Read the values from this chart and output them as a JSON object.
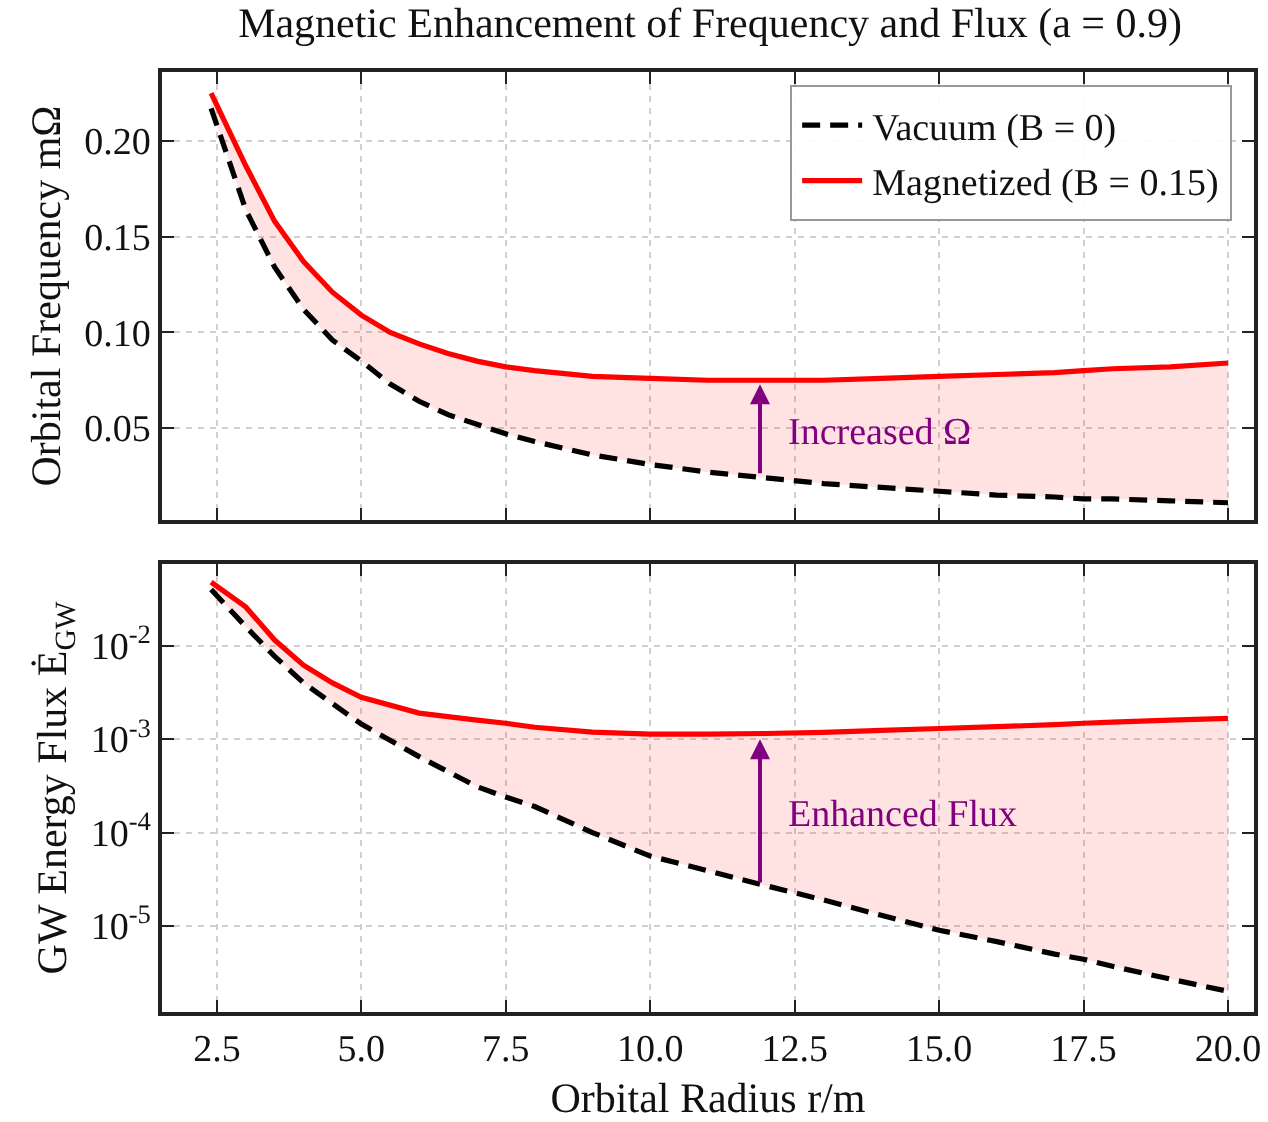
{
  "chart_data": [
    {
      "type": "line",
      "title": "Magnetic Enhancement of Frequency and Flux (a = 0.9)",
      "ylabel": "Orbital Frequency mΩ",
      "x": [
        2.4,
        3,
        3.5,
        4,
        4.5,
        5,
        5.5,
        6,
        6.5,
        7,
        7.5,
        8,
        9,
        10,
        11,
        12,
        13,
        14,
        15,
        16,
        17,
        17.5,
        18,
        19,
        20
      ],
      "series": [
        {
          "name": "Vacuum (B = 0)",
          "color": "#000000",
          "line_style": "dashed",
          "values": [
            0.217,
            0.164,
            0.134,
            0.112,
            0.096,
            0.085,
            0.073,
            0.064,
            0.057,
            0.052,
            0.047,
            0.043,
            0.036,
            0.031,
            0.027,
            0.024,
            0.021,
            0.019,
            0.017,
            0.015,
            0.014,
            0.013,
            0.013,
            0.012,
            0.011
          ]
        },
        {
          "name": "Magnetized (B = 0.15)",
          "color": "#ff0000",
          "line_style": "solid",
          "values": [
            0.225,
            0.187,
            0.158,
            0.137,
            0.121,
            0.109,
            0.1,
            0.094,
            0.089,
            0.085,
            0.082,
            0.08,
            0.077,
            0.076,
            0.075,
            0.075,
            0.075,
            0.076,
            0.077,
            0.078,
            0.079,
            0.08,
            0.081,
            0.082,
            0.084
          ],
          "lower": [
            0.217,
            0.164,
            0.134,
            0.112,
            0.096,
            0.085,
            0.073,
            0.064,
            0.057,
            0.052,
            0.047,
            0.043,
            0.036,
            0.031,
            0.027,
            0.024,
            0.021,
            0.019,
            0.017,
            0.015,
            0.014,
            0.013,
            0.013,
            0.012,
            0.011
          ],
          "upper": [
            0.225,
            0.187,
            0.158,
            0.137,
            0.121,
            0.109,
            0.1,
            0.094,
            0.089,
            0.085,
            0.082,
            0.08,
            0.077,
            0.076,
            0.075,
            0.075,
            0.075,
            0.076,
            0.077,
            0.078,
            0.079,
            0.08,
            0.081,
            0.082,
            0.084
          ]
        }
      ],
      "xlim": [
        1.55,
        20.45
      ],
      "xticks": [
        2.5,
        5,
        7.5,
        10,
        12.5,
        15,
        17.5,
        20
      ],
      "ylim": [
        0.002,
        0.236
      ],
      "yticks": [
        0.05,
        {
          "value": 0.1,
          "label": "0.10"
        },
        0.15,
        {
          "value": 0.2,
          "label": "0.20"
        }
      ],
      "tick_labels": "y",
      "grid": true,
      "legend": "top right",
      "annotations": [
        {
          "text": "Increased Ω",
          "x": 11.9,
          "y": 0.075
        }
      ]
    },
    {
      "type": "line",
      "xlabel": "Orbital Radius r/m",
      "ylabel": "GW Energy Flux Ė$_{GW}$",
      "x": [
        2.4,
        3,
        3.5,
        4,
        4.5,
        5,
        6,
        7,
        7.5,
        8,
        9,
        10,
        11,
        12,
        13,
        14,
        15,
        16,
        17,
        17.5,
        18,
        19,
        20
      ],
      "series": [
        {
          "color": "#000000",
          "line_style": "dashed",
          "values": [
            0.04,
            0.016,
            0.0077,
            0.004,
            0.0024,
            0.00145,
            0.00065,
            0.00031,
            0.00024,
            0.00019,
            0.0001,
            5.6e-05,
            3.9e-05,
            2.7e-05,
            1.9e-05,
            1.3e-05,
            9e-06,
            6.8e-06,
            5e-06,
            4.4e-06,
            3.7e-06,
            2.7e-06,
            2e-06
          ]
        },
        {
          "color": "#ff0000",
          "line_style": "solid",
          "values": [
            0.048,
            0.026,
            0.0115,
            0.0062,
            0.004,
            0.0028,
            0.0019,
            0.0016,
            0.00148,
            0.00134,
            0.00119,
            0.00113,
            0.00113,
            0.00115,
            0.00118,
            0.00124,
            0.0013,
            0.00136,
            0.00143,
            0.00148,
            0.00152,
            0.0016,
            0.00167
          ],
          "lower": [
            0.04,
            0.016,
            0.0077,
            0.004,
            0.0024,
            0.00145,
            0.00065,
            0.00031,
            0.00024,
            0.00019,
            0.0001,
            5.6e-05,
            3.9e-05,
            2.7e-05,
            1.9e-05,
            1.3e-05,
            9e-06,
            6.8e-06,
            5e-06,
            4.4e-06,
            3.7e-06,
            2.7e-06,
            2e-06
          ],
          "upper": [
            0.048,
            0.026,
            0.0115,
            0.0062,
            0.004,
            0.0028,
            0.0019,
            0.0016,
            0.00148,
            0.00134,
            0.00119,
            0.00113,
            0.00113,
            0.00115,
            0.00118,
            0.00124,
            0.0013,
            0.00136,
            0.00143,
            0.00148,
            0.00152,
            0.0016,
            0.00167
          ]
        }
      ],
      "xlim": [
        1.55,
        20.45
      ],
      "xticks": [
        2.5,
        {
          "value": 5,
          "label": "5.0"
        },
        7.5,
        {
          "value": 10,
          "label": "10.0"
        },
        12.5,
        {
          "value": 15,
          "label": "15.0"
        },
        17.5,
        {
          "value": 20,
          "label": "20.0"
        }
      ],
      "ylim": [
        1.2e-06,
        0.075
      ],
      "log": true,
      "yticks": [
        {
          "value": 1e-05,
          "label": "10$^{-5}$"
        },
        {
          "value": 0.0001,
          "label": "10$^{-4}$"
        },
        {
          "value": 0.001,
          "label": "10$^{-3}$"
        },
        {
          "value": 0.01,
          "label": "10$^{-2}$"
        }
      ],
      "grid": true,
      "annotations": [
        {
          "text": "Enhanced Flux",
          "x": 11.9,
          "y": 0.0011
        }
      ]
    }
  ]
}
